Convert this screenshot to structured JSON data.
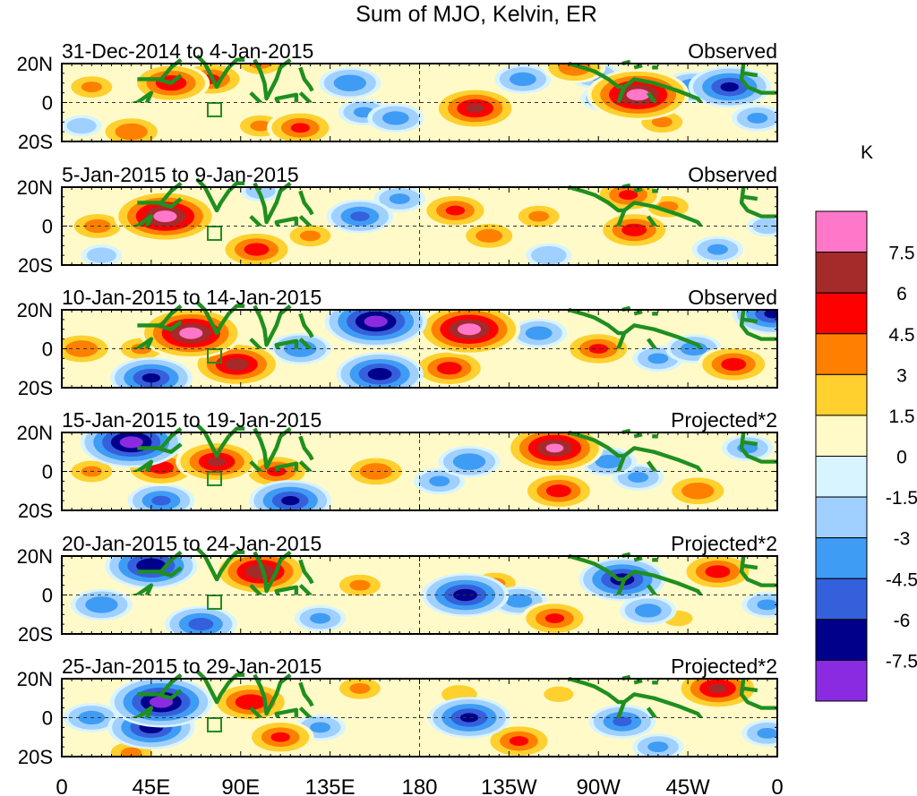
{
  "chart_data": {
    "type": "heatmap",
    "title": "Sum of MJO, Kelvin, ER",
    "colorbar": {
      "unit": "K",
      "tick_labels": [
        "7.5",
        "6",
        "4.5",
        "3",
        "1.5",
        "0",
        "-1.5",
        "-3",
        "-4.5",
        "-6",
        "-7.5"
      ],
      "colors": [
        "#ff77c8",
        "#a52a2a",
        "#ff0000",
        "#ff8000",
        "#ffd02e",
        "#fffac8",
        "#d8f4ff",
        "#a0d0ff",
        "#3f9cf5",
        "#3560dc",
        "#00008b",
        "#8a2be2"
      ]
    },
    "x_axis": {
      "tick_labels": [
        "0",
        "45E",
        "90E",
        "135E",
        "180",
        "135W",
        "90W",
        "45W",
        "0"
      ],
      "range_deg_east": [
        0,
        360
      ]
    },
    "y_axis": {
      "tick_labels": [
        "20N",
        "0",
        "20S"
      ],
      "range_deg": [
        -20,
        20
      ]
    },
    "panels": [
      {
        "date_range": "31-Dec-2014 to 4-Jan-2015",
        "kind": "Observed",
        "anomalies": [
          {
            "lon": 55,
            "lat": 10,
            "value": 5.5
          },
          {
            "lon": 75,
            "lat": 12,
            "value": 4.5
          },
          {
            "lon": 15,
            "lat": 8,
            "value": 3
          },
          {
            "lon": 100,
            "lat": 20,
            "value": 3
          },
          {
            "lon": 120,
            "lat": -13,
            "value": 4.5
          },
          {
            "lon": 100,
            "lat": -12,
            "value": 3
          },
          {
            "lon": 35,
            "lat": -15,
            "value": 4
          },
          {
            "lon": 208,
            "lat": -3,
            "value": 6
          },
          {
            "lon": 258,
            "lat": 18,
            "value": 4
          },
          {
            "lon": 290,
            "lat": 4,
            "value": 8
          },
          {
            "lon": 302,
            "lat": -10,
            "value": 3
          },
          {
            "lon": 145,
            "lat": 10,
            "value": -4
          },
          {
            "lon": 152,
            "lat": -5,
            "value": -3
          },
          {
            "lon": 168,
            "lat": -8,
            "value": -3.5
          },
          {
            "lon": 232,
            "lat": 12,
            "value": -3.5
          },
          {
            "lon": 268,
            "lat": 14,
            "value": -3
          },
          {
            "lon": 274,
            "lat": 2,
            "value": -3
          },
          {
            "lon": 318,
            "lat": 8,
            "value": -4
          },
          {
            "lon": 336,
            "lat": 8,
            "value": -6
          },
          {
            "lon": 350,
            "lat": -8,
            "value": -3
          },
          {
            "lon": 10,
            "lat": -12,
            "value": -2
          }
        ]
      },
      {
        "date_range": "5-Jan-2015 to 9-Jan-2015",
        "kind": "Observed",
        "anomalies": [
          {
            "lon": 52,
            "lat": 5,
            "value": 8
          },
          {
            "lon": 18,
            "lat": 0,
            "value": 3.5
          },
          {
            "lon": 98,
            "lat": -12,
            "value": 5
          },
          {
            "lon": 125,
            "lat": -5,
            "value": 3
          },
          {
            "lon": 198,
            "lat": 8,
            "value": 4.5
          },
          {
            "lon": 215,
            "lat": -5,
            "value": 3.5
          },
          {
            "lon": 240,
            "lat": 5,
            "value": 3
          },
          {
            "lon": 288,
            "lat": -2,
            "value": 5
          },
          {
            "lon": 285,
            "lat": 16,
            "value": 4.5
          },
          {
            "lon": 305,
            "lat": 10,
            "value": 3
          },
          {
            "lon": 150,
            "lat": 5,
            "value": -4.5
          },
          {
            "lon": 170,
            "lat": 14,
            "value": -3
          },
          {
            "lon": 100,
            "lat": 18,
            "value": -2
          },
          {
            "lon": 245,
            "lat": -15,
            "value": -2.5
          },
          {
            "lon": 330,
            "lat": -12,
            "value": -3
          },
          {
            "lon": 355,
            "lat": 0,
            "value": -2
          },
          {
            "lon": 20,
            "lat": -15,
            "value": -2
          }
        ]
      },
      {
        "date_range": "10-Jan-2015 to 14-Jan-2015",
        "kind": "Observed",
        "anomalies": [
          {
            "lon": 65,
            "lat": 8,
            "value": 8
          },
          {
            "lon": 88,
            "lat": -8,
            "value": 6.5
          },
          {
            "lon": 10,
            "lat": 0,
            "value": 4
          },
          {
            "lon": 40,
            "lat": 0,
            "value": 3
          },
          {
            "lon": 205,
            "lat": 10,
            "value": 8
          },
          {
            "lon": 195,
            "lat": -10,
            "value": 5
          },
          {
            "lon": 270,
            "lat": 0,
            "value": 4.5
          },
          {
            "lon": 338,
            "lat": -8,
            "value": 5
          },
          {
            "lon": 158,
            "lat": 14,
            "value": -8
          },
          {
            "lon": 160,
            "lat": -13,
            "value": -6.5
          },
          {
            "lon": 120,
            "lat": 0,
            "value": -4
          },
          {
            "lon": 45,
            "lat": -15,
            "value": -6
          },
          {
            "lon": 240,
            "lat": 8,
            "value": -3.5
          },
          {
            "lon": 300,
            "lat": -5,
            "value": -3
          },
          {
            "lon": 318,
            "lat": 0,
            "value": -3.5
          },
          {
            "lon": 358,
            "lat": 18,
            "value": -6
          }
        ]
      },
      {
        "date_range": "15-Jan-2015 to 19-Jan-2015",
        "kind": "Projected*2",
        "anomalies": [
          {
            "lon": 78,
            "lat": 5,
            "value": 6
          },
          {
            "lon": 50,
            "lat": 2,
            "value": 5
          },
          {
            "lon": 108,
            "lat": 0,
            "value": 4.5
          },
          {
            "lon": 158,
            "lat": 0,
            "value": 4
          },
          {
            "lon": 248,
            "lat": 12,
            "value": 7.5
          },
          {
            "lon": 250,
            "lat": -10,
            "value": 5
          },
          {
            "lon": 320,
            "lat": -10,
            "value": 4
          },
          {
            "lon": 15,
            "lat": 0,
            "value": 3
          },
          {
            "lon": 35,
            "lat": 15,
            "value": -8
          },
          {
            "lon": 50,
            "lat": -15,
            "value": -4.5
          },
          {
            "lon": 115,
            "lat": -15,
            "value": -6
          },
          {
            "lon": 205,
            "lat": 5,
            "value": -4
          },
          {
            "lon": 190,
            "lat": -5,
            "value": -3
          },
          {
            "lon": 275,
            "lat": 5,
            "value": -3.5
          },
          {
            "lon": 290,
            "lat": -3,
            "value": -3
          },
          {
            "lon": 345,
            "lat": 12,
            "value": -3
          }
        ]
      },
      {
        "date_range": "20-Jan-2015 to 24-Jan-2015",
        "kind": "Projected*2",
        "anomalies": [
          {
            "lon": 100,
            "lat": 12,
            "value": 7
          },
          {
            "lon": 150,
            "lat": 5,
            "value": 3
          },
          {
            "lon": 218,
            "lat": 6,
            "value": 3
          },
          {
            "lon": 248,
            "lat": -12,
            "value": 4.5
          },
          {
            "lon": 330,
            "lat": 12,
            "value": 5
          },
          {
            "lon": 310,
            "lat": -12,
            "value": 2
          },
          {
            "lon": 45,
            "lat": 15,
            "value": -7
          },
          {
            "lon": 20,
            "lat": -5,
            "value": -4
          },
          {
            "lon": 70,
            "lat": -15,
            "value": -5
          },
          {
            "lon": 130,
            "lat": -12,
            "value": -3
          },
          {
            "lon": 203,
            "lat": 0,
            "value": -6.5
          },
          {
            "lon": 230,
            "lat": -3,
            "value": -3.5
          },
          {
            "lon": 282,
            "lat": 8,
            "value": -6.5
          },
          {
            "lon": 295,
            "lat": -8,
            "value": -3.5
          },
          {
            "lon": 355,
            "lat": -5,
            "value": -3
          }
        ]
      },
      {
        "date_range": "25-Jan-2015 to 29-Jan-2015",
        "kind": "Projected*2",
        "anomalies": [
          {
            "lon": 50,
            "lat": 8,
            "value": -8
          },
          {
            "lon": 45,
            "lat": -5,
            "value": -6.5
          },
          {
            "lon": 15,
            "lat": 0,
            "value": -3.5
          },
          {
            "lon": 130,
            "lat": -5,
            "value": -3
          },
          {
            "lon": 205,
            "lat": 0,
            "value": -6
          },
          {
            "lon": 282,
            "lat": -2,
            "value": -4.5
          },
          {
            "lon": 300,
            "lat": -15,
            "value": -3
          },
          {
            "lon": 355,
            "lat": -8,
            "value": -3
          },
          {
            "lon": 95,
            "lat": 8,
            "value": 5.5
          },
          {
            "lon": 110,
            "lat": -10,
            "value": 4.5
          },
          {
            "lon": 150,
            "lat": 15,
            "value": 3
          },
          {
            "lon": 230,
            "lat": -12,
            "value": 4.5
          },
          {
            "lon": 200,
            "lat": 12,
            "value": 2.5
          },
          {
            "lon": 330,
            "lat": 15,
            "value": 6
          },
          {
            "lon": 35,
            "lat": -18,
            "value": 3
          },
          {
            "lon": 250,
            "lat": 12,
            "value": 2
          }
        ]
      }
    ]
  }
}
